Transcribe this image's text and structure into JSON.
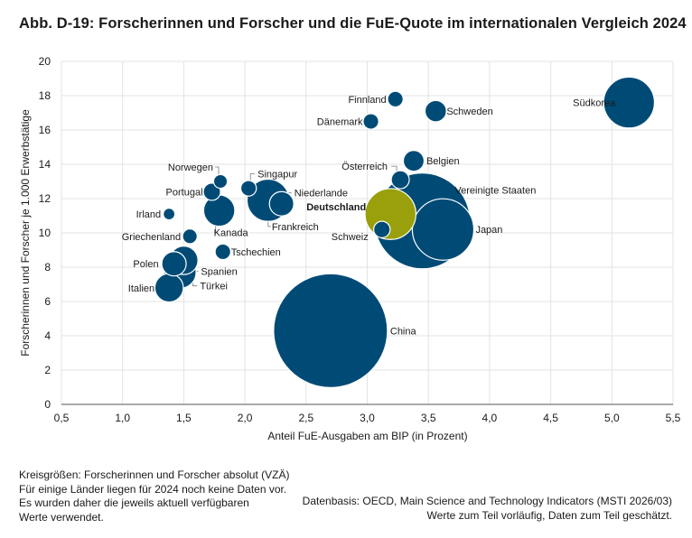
{
  "page_title": "Abb. D-19: Forscherinnen und Forscher und die FuE-Quote im internationalen Vergleich 2024",
  "colors": {
    "bubble": "#004b76",
    "highlight": "#99a00b",
    "grid": "#e3e3e3",
    "leader": "#7a7a7a"
  },
  "chart_data": {
    "type": "scatter",
    "variant": "bubble",
    "xlabel": "Anteil FuE-Ausgaben am BIP (in Prozent)",
    "ylabel": "Forscherinnen und Forscher je 1.000 Erwerbstätige",
    "xlim": [
      0.5,
      5.5
    ],
    "ylim": [
      0,
      20
    ],
    "x_ticks": [
      "0,5",
      "1,0",
      "1,5",
      "2,0",
      "2,5",
      "3,0",
      "3,5",
      "4,0",
      "4,5",
      "5,0",
      "5,5"
    ],
    "y_ticks": [
      "0",
      "2",
      "4",
      "6",
      "8",
      "10",
      "12",
      "14",
      "16",
      "18",
      "20"
    ],
    "grid": true,
    "size_note": "Kreisgrößen: Forscherinnen und Forscher absolut (VZÄ)",
    "points": [
      {
        "label": "China",
        "x": 2.7,
        "y": 4.3,
        "size": 2400000
      },
      {
        "label": "Vereinigte Staaten",
        "x": 3.45,
        "y": 10.7,
        "size": 1700000
      },
      {
        "label": "Japan",
        "x": 3.62,
        "y": 10.2,
        "size": 700000
      },
      {
        "label": "Deutschland",
        "x": 3.19,
        "y": 11.1,
        "size": 480000,
        "highlight": true
      },
      {
        "label": "Südkorea",
        "x": 5.14,
        "y": 17.6,
        "size": 480000
      },
      {
        "label": "Frankreich",
        "x": 2.19,
        "y": 11.9,
        "size": 330000
      },
      {
        "label": "Kanada",
        "x": 1.79,
        "y": 11.3,
        "size": 180000
      },
      {
        "label": "Türkei",
        "x": 1.47,
        "y": 7.7,
        "size": 190000
      },
      {
        "label": "Italien",
        "x": 1.38,
        "y": 6.8,
        "size": 150000
      },
      {
        "label": "Spanien",
        "x": 1.5,
        "y": 8.4,
        "size": 150000
      },
      {
        "label": "Polen",
        "x": 1.42,
        "y": 8.2,
        "size": 110000
      },
      {
        "label": "Niederlande",
        "x": 2.3,
        "y": 11.7,
        "size": 110000
      },
      {
        "label": "Schweden",
        "x": 3.56,
        "y": 17.1,
        "size": 85000
      },
      {
        "label": "Belgien",
        "x": 3.38,
        "y": 14.2,
        "size": 80000
      },
      {
        "label": "Österreich",
        "x": 3.27,
        "y": 13.1,
        "size": 60000
      },
      {
        "label": "Schweiz",
        "x": 3.12,
        "y": 10.2,
        "size": 50000
      },
      {
        "label": "Portugal",
        "x": 1.73,
        "y": 12.4,
        "size": 55000
      },
      {
        "label": "Tschechien",
        "x": 1.82,
        "y": 8.9,
        "size": 45000
      },
      {
        "label": "Singapur",
        "x": 2.03,
        "y": 12.6,
        "size": 45000
      },
      {
        "label": "Dänemark",
        "x": 3.03,
        "y": 16.5,
        "size": 45000
      },
      {
        "label": "Finnland",
        "x": 3.23,
        "y": 17.8,
        "size": 45000
      },
      {
        "label": "Griechenland",
        "x": 1.55,
        "y": 9.8,
        "size": 40000
      },
      {
        "label": "Norwegen",
        "x": 1.8,
        "y": 13.0,
        "size": 35000
      },
      {
        "label": "Irland",
        "x": 1.38,
        "y": 11.1,
        "size": 25000
      }
    ]
  },
  "footer": {
    "notes_left": [
      "Kreisgrößen: Forscherinnen und Forscher absolut (VZÄ)",
      "Für einige Länder liegen für 2024 noch keine Daten vor.",
      "Es wurden daher die jeweils aktuell verfügbaren",
      "Werte verwendet."
    ],
    "notes_right": [
      "Datenbasis: OECD, Main Science and Technology Indicators (MSTI 2026/03)",
      "Werte zum Teil vorläufig, Daten zum Teil geschätzt."
    ]
  }
}
